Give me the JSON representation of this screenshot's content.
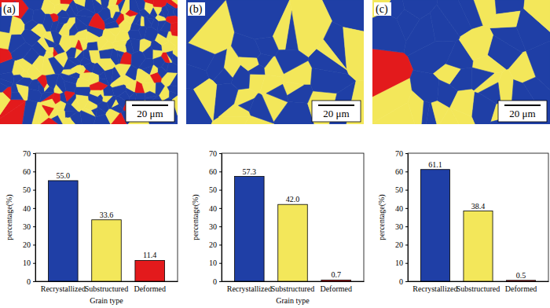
{
  "chart_data": [
    {
      "type": "bar",
      "categories": [
        "Recrystallized",
        "Substructured",
        "Deformed"
      ],
      "values": [
        55.0,
        33.6,
        11.4
      ],
      "value_labels": [
        "55.0",
        "33.6",
        "11.4"
      ],
      "colors": [
        "#1f3fa6",
        "#f3e75a",
        "#e31a1c"
      ],
      "y_label": "percentage(%)",
      "x_label": "Grain type",
      "ylim": [
        0,
        70
      ],
      "yticks": [
        0,
        10,
        20,
        30,
        40,
        50,
        60,
        70
      ],
      "data_labels": true
    },
    {
      "type": "bar",
      "categories": [
        "Recrystallized",
        "Substructured",
        "Deformed"
      ],
      "values": [
        57.3,
        42.0,
        0.7
      ],
      "value_labels": [
        "57.3",
        "42.0",
        "0.7"
      ],
      "colors": [
        "#1f3fa6",
        "#f3e75a",
        "#e31a1c"
      ],
      "y_label": "percentage(%)",
      "x_label": "Grain type",
      "ylim": [
        0,
        70
      ],
      "yticks": [
        0,
        10,
        20,
        30,
        40,
        50,
        60,
        70
      ],
      "data_labels": true
    },
    {
      "type": "bar",
      "categories": [
        "Recrystallized",
        "Substructured",
        "Deformed"
      ],
      "values": [
        61.1,
        38.4,
        0.5
      ],
      "value_labels": [
        "61.1",
        "38.4",
        "0.5"
      ],
      "colors": [
        "#1f3fa6",
        "#f3e75a",
        "#e31a1c"
      ],
      "y_label": "percentage(%)",
      "ylim": [
        0,
        70
      ],
      "yticks": [
        0,
        10,
        20,
        30,
        40,
        50,
        60,
        70
      ],
      "data_labels": true
    }
  ],
  "images": [
    {
      "label": "(a)",
      "scale_bar": "20 μm"
    },
    {
      "label": "(b)",
      "scale_bar": "20 μm"
    },
    {
      "label": "(c)",
      "scale_bar": "20 μm"
    }
  ]
}
